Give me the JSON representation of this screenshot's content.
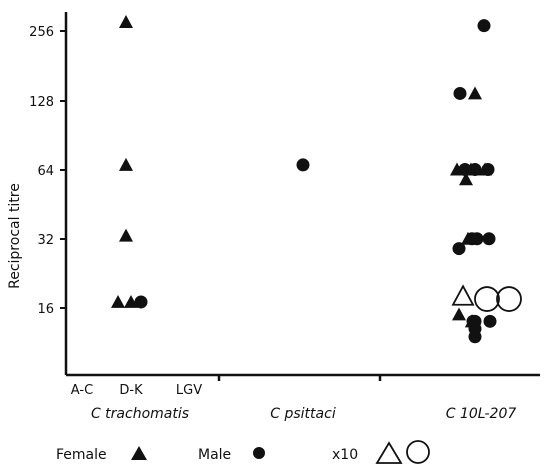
{
  "chart_data": {
    "type": "scatter",
    "ylabel": "Reciprocal titre",
    "yscale": "log2",
    "ylim": [
      8,
      300
    ],
    "yticks": [
      "256",
      "128",
      "64",
      "32",
      "16"
    ],
    "subcategories": [
      "A-C",
      "D-K",
      "LGV"
    ],
    "groups": [
      "C trachomatis",
      "C psittaci",
      "C 10L-207"
    ],
    "legend": {
      "female": "Female",
      "male": "Male",
      "x10": "x10"
    },
    "series": [
      {
        "name": "Female",
        "marker": "triangle-filled",
        "points": [
          {
            "x": "D-K",
            "y": 280
          },
          {
            "x": "D-K",
            "y": 67
          },
          {
            "x": "D-K",
            "y": 33
          },
          {
            "x": "D-K",
            "y": 17
          },
          {
            "x": "D-K",
            "y": 17
          },
          {
            "x": "C 10L-207",
            "y": 137
          },
          {
            "x": "C 10L-207",
            "y": 64
          },
          {
            "x": "C 10L-207",
            "y": 64
          },
          {
            "x": "C 10L-207",
            "y": 64
          },
          {
            "x": "C 10L-207",
            "y": 58
          },
          {
            "x": "C 10L-207",
            "y": 32
          },
          {
            "x": "C 10L-207",
            "y": 15
          },
          {
            "x": "C 10L-207",
            "y": 14
          },
          {
            "x": "C 10L-207",
            "y": 14
          }
        ]
      },
      {
        "name": "Male",
        "marker": "circle-filled",
        "points": [
          {
            "x": "D-K",
            "y": 17
          },
          {
            "x": "C psittaci",
            "y": 67
          },
          {
            "x": "C 10L-207",
            "y": 270
          },
          {
            "x": "C 10L-207",
            "y": 137
          },
          {
            "x": "C 10L-207",
            "y": 64
          },
          {
            "x": "C 10L-207",
            "y": 64
          },
          {
            "x": "C 10L-207",
            "y": 64
          },
          {
            "x": "C 10L-207",
            "y": 32
          },
          {
            "x": "C 10L-207",
            "y": 32
          },
          {
            "x": "C 10L-207",
            "y": 32
          },
          {
            "x": "C 10L-207",
            "y": 29
          },
          {
            "x": "C 10L-207",
            "y": 14
          },
          {
            "x": "C 10L-207",
            "y": 14
          },
          {
            "x": "C 10L-207",
            "y": 14
          },
          {
            "x": "C 10L-207",
            "y": 13
          },
          {
            "x": "C 10L-207",
            "y": 12
          }
        ]
      },
      {
        "name": "x10",
        "marker": "open",
        "points": [
          {
            "x": "C 10L-207",
            "y": 18,
            "shape": "triangle"
          },
          {
            "x": "C 10L-207",
            "y": 17.5,
            "shape": "circle"
          },
          {
            "x": "C 10L-207",
            "y": 17.5,
            "shape": "circle"
          }
        ]
      }
    ]
  }
}
